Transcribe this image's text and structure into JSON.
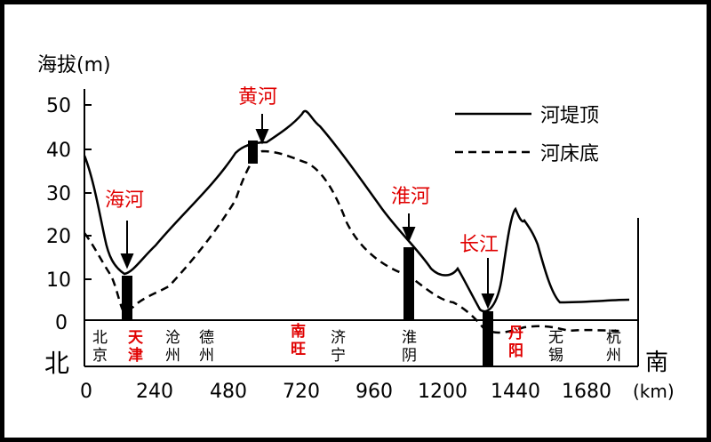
{
  "diagram": {
    "y_axis_label": "海拔(m)",
    "x_axis_unit": "(km)",
    "direction_left": "北",
    "direction_right": "南",
    "y_ticks": [
      "50",
      "40",
      "30",
      "20",
      "10",
      "0"
    ],
    "x_ticks": [
      "0",
      "240",
      "480",
      "720",
      "960",
      "1200",
      "1440",
      "1680"
    ],
    "legend": [
      {
        "label": "河堤顶",
        "style": "solid"
      },
      {
        "label": "河床底",
        "style": "dashed"
      }
    ],
    "rivers": [
      {
        "name": "海河",
        "km": 140
      },
      {
        "name": "黄河",
        "km": 560
      },
      {
        "name": "淮河",
        "km": 1060
      },
      {
        "name": "长江",
        "km": 1360
      }
    ],
    "cities": [
      {
        "name": "北京",
        "chars": [
          "北",
          "京"
        ],
        "highlight": false
      },
      {
        "name": "天津",
        "chars": [
          "天",
          "津"
        ],
        "highlight": true
      },
      {
        "name": "沧州",
        "chars": [
          "沧",
          "州"
        ],
        "highlight": false
      },
      {
        "name": "德州",
        "chars": [
          "德",
          "州"
        ],
        "highlight": false
      },
      {
        "name": "南旺",
        "chars": [
          "南",
          "旺"
        ],
        "highlight": true
      },
      {
        "name": "济宁",
        "chars": [
          "济",
          "宁"
        ],
        "highlight": false
      },
      {
        "name": "淮阴",
        "chars": [
          "淮",
          "阴"
        ],
        "highlight": false
      },
      {
        "name": "丹阳",
        "chars": [
          "丹",
          "阳"
        ],
        "highlight": true
      },
      {
        "name": "无锡",
        "chars": [
          "无",
          "锡"
        ],
        "highlight": false
      },
      {
        "name": "杭州",
        "chars": [
          "杭",
          "州"
        ],
        "highlight": false
      }
    ],
    "colors": {
      "highlight": "#e00000",
      "line": "#000000"
    }
  }
}
